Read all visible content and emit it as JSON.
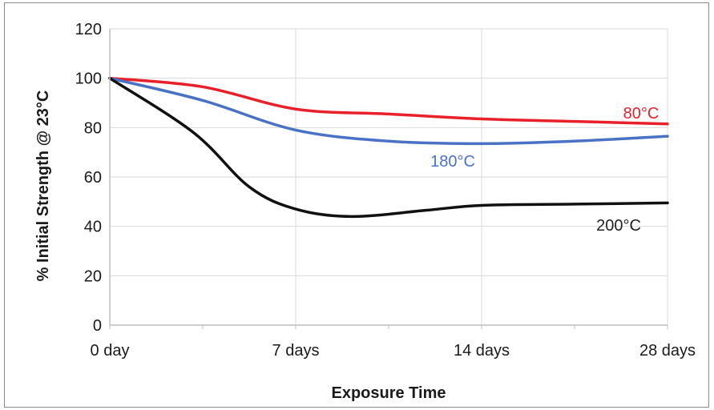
{
  "chart_data": {
    "type": "line",
    "title": "",
    "xlabel": "Exposure Time",
    "ylabel": "% Initial Strength @ 23°C",
    "x_categories": [
      "0 day",
      "7 days",
      "14 days",
      "28 days"
    ],
    "ylim": [
      0,
      120
    ],
    "yticks": [
      "0",
      "20",
      "40",
      "60",
      "80",
      "100",
      "120"
    ],
    "grid": true,
    "legend": "none (inline series labels)",
    "series": [
      {
        "name": "80°C",
        "color": "#e8202a",
        "points": [
          [
            0,
            100
          ],
          [
            0.5,
            96.5
          ],
          [
            1,
            87.5
          ],
          [
            1.5,
            85.5
          ],
          [
            2,
            83.5
          ],
          [
            2.5,
            82.5
          ],
          [
            3,
            81.5
          ]
        ]
      },
      {
        "name": "180°C",
        "color": "#4a72c4",
        "points": [
          [
            0,
            100
          ],
          [
            0.5,
            91
          ],
          [
            1,
            79
          ],
          [
            1.5,
            74.5
          ],
          [
            2,
            73.5
          ],
          [
            2.5,
            74.5
          ],
          [
            3,
            76.5
          ]
        ]
      },
      {
        "name": "200°C",
        "color": "#111111",
        "points": [
          [
            0,
            100
          ],
          [
            0.45,
            78
          ],
          [
            0.75,
            56
          ],
          [
            1,
            47
          ],
          [
            1.3,
            44
          ],
          [
            1.7,
            46.5
          ],
          [
            2,
            48.5
          ],
          [
            2.5,
            49
          ],
          [
            3,
            49.5
          ]
        ]
      }
    ]
  }
}
